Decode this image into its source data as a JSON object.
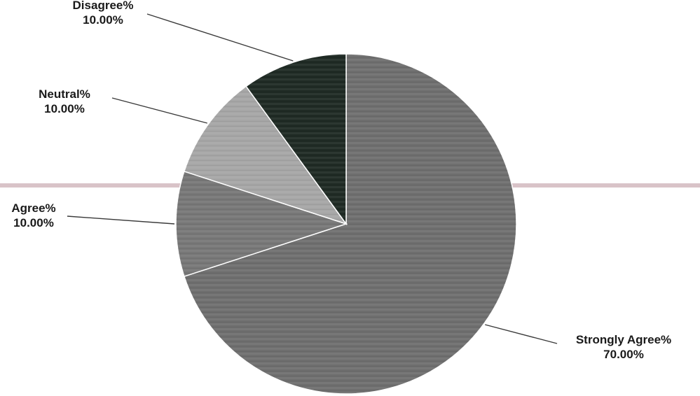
{
  "chart_data": {
    "type": "pie",
    "title": "",
    "slices": [
      {
        "label": "Strongly Agree%",
        "value": 70,
        "value_label": "70.00%",
        "color": "#6e6e6e"
      },
      {
        "label": "Agree%",
        "value": 10,
        "value_label": "10.00%",
        "color": "#777777"
      },
      {
        "label": "Neutral%",
        "value": 10,
        "value_label": "10.00%",
        "color": "#a6a6a6"
      },
      {
        "label": "Disagree%",
        "value": 10,
        "value_label": "10.00%",
        "color": "#1f2a24"
      }
    ],
    "start": "12 o'clock",
    "direction": "clockwise",
    "legend": "none",
    "data_labels": "outside with leader lines"
  },
  "decor": {
    "divider_color": "#d9c3c8"
  }
}
